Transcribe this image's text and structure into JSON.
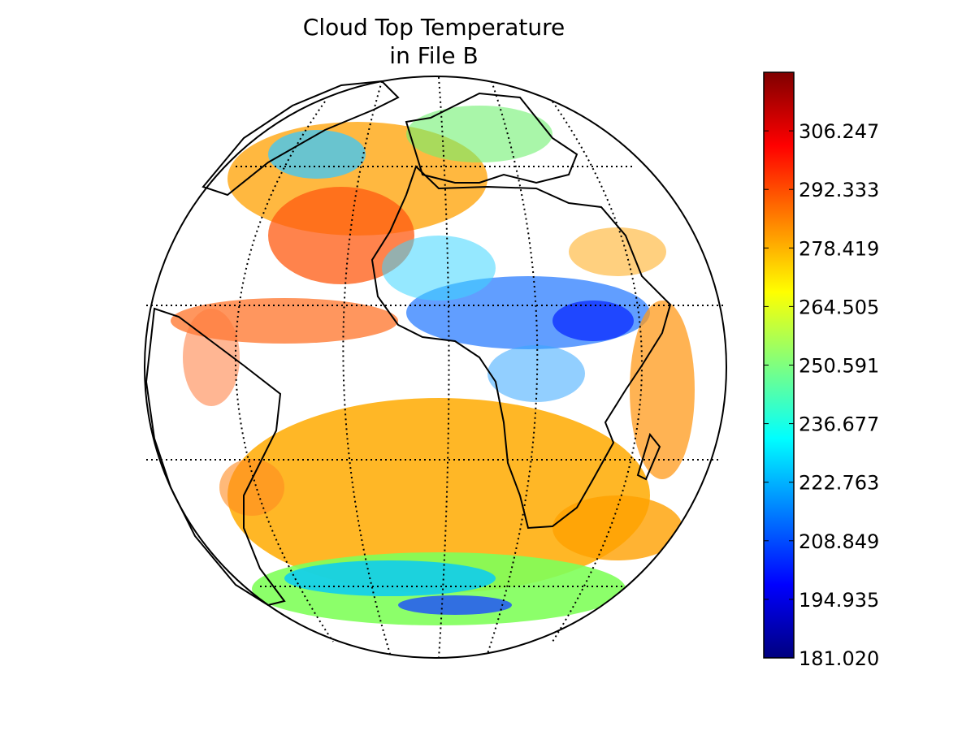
{
  "map": {
    "title_line1": "Cloud Top Temperature",
    "title_line2": "in File B",
    "projection": "geostationary",
    "central_meridian": 0,
    "graticule_lines": "dotted",
    "colormap": "jet"
  },
  "colorbar": {
    "min": 181.02,
    "max": 320.161,
    "tick_labels": [
      "181.020",
      "194.935",
      "208.849",
      "222.763",
      "236.677",
      "250.591",
      "264.505",
      "278.419",
      "292.333",
      "306.247"
    ],
    "colors": [
      "#00007f",
      "#0000ff",
      "#007fff",
      "#00ffff",
      "#7fff7f",
      "#ffff00",
      "#ff7f00",
      "#ff0000",
      "#7f0000"
    ],
    "orientation": "vertical",
    "placement": "right"
  }
}
